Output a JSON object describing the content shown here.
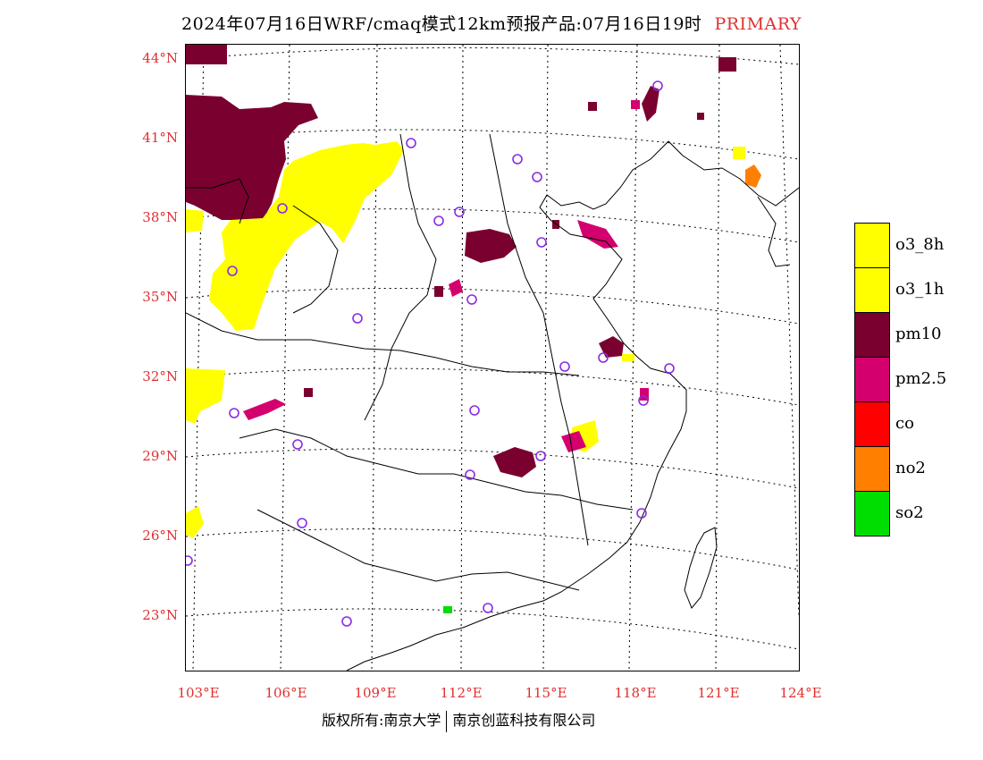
{
  "title": {
    "main": "2024年07月16日WRF/cmaq模式12km预报产品:07月16日19时",
    "tag": "PRIMARY"
  },
  "lat_labels": [
    "44°N",
    "41°N",
    "38°N",
    "35°N",
    "32°N",
    "29°N",
    "26°N",
    "23°N"
  ],
  "lon_labels": [
    "103°E",
    "106°E",
    "109°E",
    "112°E",
    "115°E",
    "118°E",
    "121°E",
    "124°E"
  ],
  "credit": {
    "left": "版权所有:南京大学",
    "right": "南京创蓝科技有限公司"
  },
  "legend": [
    {
      "label": "o3_8h",
      "color": "#ffff00"
    },
    {
      "label": "o3_1h",
      "color": "#ffff00"
    },
    {
      "label": "pm10",
      "color": "#7a0030"
    },
    {
      "label": "pm2.5",
      "color": "#d4006e"
    },
    {
      "label": "co",
      "color": "#ff0000"
    },
    {
      "label": "no2",
      "color": "#ff7f00"
    },
    {
      "label": "so2",
      "color": "#00dd00"
    }
  ],
  "colors": {
    "accent_red": "#e03030",
    "station_circle": "#8a2be2"
  }
}
